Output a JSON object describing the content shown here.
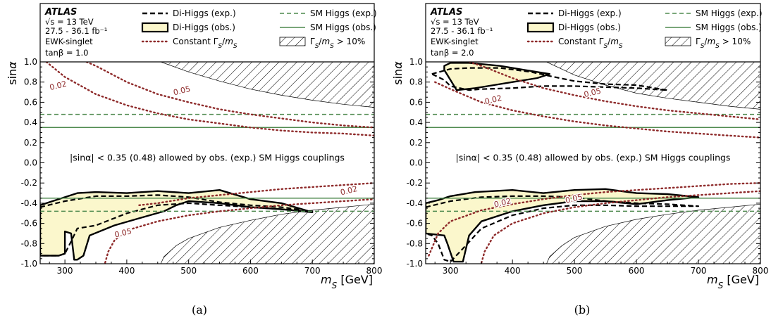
{
  "chart_data": [
    {
      "type": "line",
      "caption": "(a)",
      "xlabel": "m_S [GeV]",
      "ylabel": "sinα",
      "xlim": [
        260,
        800
      ],
      "ylim": [
        -1.0,
        1.0
      ],
      "xticks": [
        "300",
        "400",
        "500",
        "600",
        "700",
        "800"
      ],
      "yticks": [
        "-1.0",
        "-0.8",
        "-0.6",
        "-0.4",
        "-0.2",
        "0.0",
        "0.2",
        "0.4",
        "0.6",
        "0.8",
        "1.0"
      ],
      "info": [
        "ATLAS",
        "√s = 13 TeV",
        "27.5 - 36.1 fb⁻¹",
        "EWK-singlet",
        "tanβ = 1.0"
      ],
      "legend": [
        {
          "label": "Di-Higgs (exp.)",
          "style": "dashed-black"
        },
        {
          "label": "Di-Higgs (obs.)",
          "style": "filled-yellow"
        },
        {
          "label": "Constant Γ_S/m_S",
          "style": "dotted-red"
        },
        {
          "label": "SM Higgs (exp.)",
          "style": "dashed-green"
        },
        {
          "label": "SM Higgs (obs.)",
          "style": "solid-green"
        },
        {
          "label": "Γ_S/m_S > 10%",
          "style": "hatched"
        }
      ],
      "annotation": "|sinα| < 0.35 (0.48) allowed by obs. (exp.) SM Higgs couplings",
      "sm_higgs": {
        "obs": 0.35,
        "exp": 0.48
      },
      "width_labels": [
        {
          "text": "0.02",
          "x": 290,
          "y": 0.74
        },
        {
          "text": "0.05",
          "x": 490,
          "y": 0.69
        },
        {
          "text": "0.02",
          "x": 760,
          "y": -0.3
        },
        {
          "text": "0.05",
          "x": 395,
          "y": -0.72
        }
      ],
      "series": [
        {
          "name": "Constant Γ_S/m_S",
          "label": "0.02",
          "sign": "upper",
          "x": [
            270,
            300,
            350,
            400,
            450,
            500,
            550,
            600,
            650,
            700,
            750,
            800
          ],
          "y": [
            1.0,
            0.85,
            0.68,
            0.57,
            0.49,
            0.43,
            0.39,
            0.35,
            0.32,
            0.3,
            0.29,
            0.27
          ]
        },
        {
          "name": "Constant Γ_S/m_S",
          "label": "0.05",
          "sign": "upper",
          "x": [
            335,
            350,
            400,
            450,
            500,
            550,
            600,
            650,
            700,
            750,
            800
          ],
          "y": [
            1.0,
            0.96,
            0.8,
            0.68,
            0.6,
            0.53,
            0.48,
            0.44,
            0.4,
            0.37,
            0.35
          ]
        },
        {
          "name": "Constant Γ_S/m_S",
          "label": "0.02",
          "sign": "lower",
          "x": [
            420,
            450,
            500,
            550,
            600,
            650,
            700,
            750,
            800
          ],
          "y": [
            -0.42,
            -0.4,
            -0.35,
            -0.32,
            -0.29,
            -0.26,
            -0.24,
            -0.22,
            -0.2
          ]
        },
        {
          "name": "Constant Γ_S/m_S",
          "label": "0.05",
          "sign": "lower",
          "x": [
            365,
            370,
            380,
            400,
            450,
            500,
            550,
            600,
            650,
            700,
            750,
            800
          ],
          "y": [
            -0.99,
            -0.88,
            -0.77,
            -0.67,
            -0.58,
            -0.52,
            -0.48,
            -0.45,
            -0.42,
            -0.4,
            -0.38,
            -0.36
          ]
        },
        {
          "name": "Γ_S/m_S > 10%",
          "kind": "region-upper",
          "x": [
            455,
            500,
            550,
            600,
            650,
            700,
            750,
            800
          ],
          "y": [
            1.0,
            0.9,
            0.81,
            0.73,
            0.67,
            0.62,
            0.58,
            0.55
          ]
        },
        {
          "name": "Γ_S/m_S > 10%",
          "kind": "region-lower",
          "x": [
            455,
            460,
            480,
            500,
            550,
            600,
            650,
            700,
            750,
            800
          ],
          "y": [
            -1.0,
            -0.93,
            -0.82,
            -0.75,
            -0.64,
            -0.57,
            -0.51,
            -0.47,
            -0.44,
            -0.41
          ]
        },
        {
          "name": "Di-Higgs (obs.)",
          "kind": "filled",
          "x": [
            260,
            280,
            320,
            350,
            400,
            450,
            500,
            550,
            600,
            650,
            700,
            650,
            600,
            550,
            500,
            480,
            460,
            420,
            380,
            340,
            330,
            320,
            315,
            310,
            300,
            300,
            290,
            260
          ],
          "y": [
            -0.42,
            -0.38,
            -0.3,
            -0.29,
            -0.3,
            -0.28,
            -0.3,
            -0.27,
            -0.36,
            -0.4,
            -0.49,
            -0.46,
            -0.44,
            -0.4,
            -0.38,
            -0.42,
            -0.48,
            -0.55,
            -0.62,
            -0.72,
            -0.92,
            -0.96,
            -0.96,
            -0.7,
            -0.68,
            -0.9,
            -0.92,
            -0.92
          ]
        },
        {
          "name": "Di-Higgs (exp.)",
          "kind": "dashed",
          "x": [
            260,
            300,
            350,
            400,
            450,
            500,
            550,
            600,
            650,
            700,
            650,
            600,
            550,
            500,
            450,
            400,
            350,
            320,
            310,
            300,
            290,
            260
          ],
          "y": [
            -0.44,
            -0.38,
            -0.33,
            -0.33,
            -0.32,
            -0.34,
            -0.39,
            -0.42,
            -0.44,
            -0.48,
            -0.46,
            -0.44,
            -0.42,
            -0.4,
            -0.42,
            -0.5,
            -0.62,
            -0.65,
            -0.78,
            -0.9,
            -0.92,
            -0.92
          ]
        }
      ]
    },
    {
      "type": "line",
      "caption": "(b)",
      "xlabel": "m_S [GeV]",
      "ylabel": "sinα",
      "xlim": [
        260,
        800
      ],
      "ylim": [
        -1.0,
        1.0
      ],
      "xticks": [
        "300",
        "400",
        "500",
        "600",
        "700",
        "800"
      ],
      "yticks": [
        "-1.0",
        "-0.8",
        "-0.6",
        "-0.4",
        "-0.2",
        "0.0",
        "0.2",
        "0.4",
        "0.6",
        "0.8",
        "1.0"
      ],
      "info": [
        "ATLAS",
        "√s = 13 TeV",
        "27.5 - 36.1 fb⁻¹",
        "EWK-singlet",
        "tanβ = 2.0"
      ],
      "legend": [
        {
          "label": "Di-Higgs (exp.)",
          "style": "dashed-black"
        },
        {
          "label": "Di-Higgs (obs.)",
          "style": "filled-yellow"
        },
        {
          "label": "Constant Γ_S/m_S",
          "style": "dotted-red"
        },
        {
          "label": "SM Higgs (exp.)",
          "style": "dashed-green"
        },
        {
          "label": "SM Higgs (obs.)",
          "style": "solid-green"
        },
        {
          "label": "Γ_S/m_S > 10%",
          "style": "hatched"
        }
      ],
      "annotation": "|sinα| < 0.35 (0.48) allowed by obs. (exp.) SM Higgs couplings",
      "sm_higgs": {
        "obs": 0.35,
        "exp": 0.48
      },
      "width_labels": [
        {
          "text": "0.02",
          "x": 370,
          "y": 0.6
        },
        {
          "text": "0.05",
          "x": 530,
          "y": 0.67
        },
        {
          "text": "0.02",
          "x": 385,
          "y": -0.42
        },
        {
          "text": "0.05",
          "x": 500,
          "y": -0.38
        }
      ],
      "series": [
        {
          "name": "Constant Γ_S/m_S",
          "label": "0.02",
          "sign": "upper",
          "x": [
            275,
            300,
            350,
            400,
            450,
            500,
            550,
            600,
            650,
            700,
            750,
            800
          ],
          "y": [
            0.8,
            0.73,
            0.6,
            0.52,
            0.46,
            0.41,
            0.37,
            0.34,
            0.31,
            0.29,
            0.27,
            0.25
          ]
        },
        {
          "name": "Constant Γ_S/m_S",
          "label": "0.05",
          "sign": "upper",
          "x": [
            330,
            350,
            400,
            450,
            500,
            550,
            600,
            650,
            700,
            750,
            800
          ],
          "y": [
            1.0,
            0.96,
            0.84,
            0.74,
            0.67,
            0.61,
            0.56,
            0.52,
            0.49,
            0.46,
            0.43
          ]
        },
        {
          "name": "Constant Γ_S/m_S",
          "label": "0.02",
          "sign": "lower",
          "x": [
            265,
            280,
            300,
            350,
            400,
            450,
            500,
            550,
            600,
            650,
            700,
            750,
            800
          ],
          "y": [
            -0.92,
            -0.7,
            -0.58,
            -0.47,
            -0.41,
            -0.36,
            -0.32,
            -0.29,
            -0.27,
            -0.25,
            -0.23,
            -0.21,
            -0.2
          ]
        },
        {
          "name": "Constant Γ_S/m_S",
          "label": "0.05",
          "sign": "lower",
          "x": [
            350,
            355,
            370,
            400,
            450,
            500,
            550,
            600,
            650,
            700,
            750,
            800
          ],
          "y": [
            -0.99,
            -0.88,
            -0.72,
            -0.6,
            -0.5,
            -0.44,
            -0.4,
            -0.37,
            -0.34,
            -0.32,
            -0.3,
            -0.28
          ]
        },
        {
          "name": "Γ_S/m_S > 10%",
          "kind": "region-upper",
          "x": [
            455,
            500,
            550,
            600,
            650,
            700,
            750,
            800
          ],
          "y": [
            1.0,
            0.87,
            0.77,
            0.69,
            0.64,
            0.6,
            0.56,
            0.53
          ]
        },
        {
          "name": "Γ_S/m_S > 10%",
          "kind": "region-lower",
          "x": [
            455,
            460,
            480,
            500,
            550,
            600,
            650,
            700,
            750,
            800
          ],
          "y": [
            -1.0,
            -0.93,
            -0.82,
            -0.74,
            -0.63,
            -0.56,
            -0.51,
            -0.47,
            -0.44,
            -0.41
          ]
        },
        {
          "name": "Di-Higgs (obs.)",
          "kind": "filled",
          "x": [
            260,
            280,
            300,
            340,
            400,
            450,
            500,
            550,
            600,
            650,
            700,
            650,
            600,
            550,
            500,
            450,
            400,
            350,
            330,
            320,
            305,
            295,
            290,
            260
          ],
          "y": [
            -0.4,
            -0.37,
            -0.33,
            -0.29,
            -0.27,
            -0.3,
            -0.27,
            -0.26,
            -0.3,
            -0.31,
            -0.34,
            -0.37,
            -0.41,
            -0.38,
            -0.38,
            -0.42,
            -0.48,
            -0.58,
            -0.72,
            -0.98,
            -0.98,
            -0.8,
            -0.72,
            -0.7
          ]
        },
        {
          "name": "Di-Higgs (exp.)",
          "kind": "dashed",
          "x": [
            260,
            300,
            350,
            400,
            450,
            500,
            550,
            600,
            650,
            700,
            650,
            600,
            550,
            500,
            450,
            400,
            350,
            320,
            300,
            290,
            280,
            270,
            260
          ],
          "y": [
            -0.44,
            -0.38,
            -0.34,
            -0.33,
            -0.33,
            -0.34,
            -0.38,
            -0.4,
            -0.41,
            -0.43,
            -0.43,
            -0.43,
            -0.42,
            -0.42,
            -0.45,
            -0.52,
            -0.65,
            -0.85,
            -0.98,
            -0.96,
            -0.8,
            -0.72,
            -0.7
          ]
        },
        {
          "name": "Di-Higgs (obs.)",
          "kind": "filled",
          "x": [
            290,
            300,
            330,
            380,
            420,
            460,
            440,
            400,
            370,
            340,
            310,
            300,
            290
          ],
          "y": [
            0.96,
            0.99,
            0.99,
            0.96,
            0.92,
            0.88,
            0.84,
            0.8,
            0.77,
            0.74,
            0.72,
            0.82,
            0.92
          ]
        },
        {
          "name": "Di-Higgs (exp.)",
          "kind": "dashed",
          "x": [
            270,
            300,
            330,
            380,
            430,
            460,
            500,
            550,
            600,
            650,
            600,
            550,
            500,
            450,
            400,
            350,
            330,
            300,
            290,
            270
          ],
          "y": [
            0.88,
            0.93,
            0.94,
            0.94,
            0.9,
            0.86,
            0.81,
            0.78,
            0.77,
            0.72,
            0.74,
            0.75,
            0.76,
            0.76,
            0.74,
            0.73,
            0.72,
            0.76,
            0.82,
            0.88
          ]
        }
      ]
    }
  ]
}
